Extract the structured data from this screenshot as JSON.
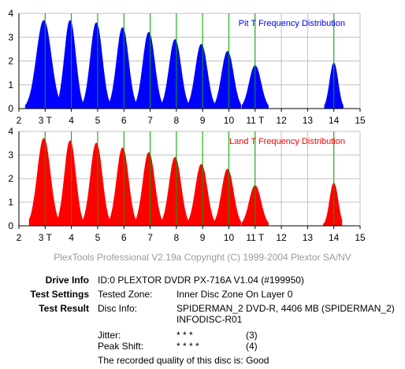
{
  "colors": {
    "pit": "#0000ff",
    "land": "#ff0000",
    "marker": "#00aa00",
    "grid": "#c0c0c0",
    "copyright": "#9a9a9a"
  },
  "chart_data": [
    {
      "type": "area",
      "title": "Pit T Frequency Distribution",
      "xlim": [
        2,
        15
      ],
      "ylim": [
        0,
        4
      ],
      "x_ticks": [
        "2",
        "3 T",
        "4",
        "5",
        "6",
        "7",
        "8",
        "9",
        "10",
        "11 T",
        "12",
        "13",
        "14",
        "15"
      ],
      "y_ticks": [
        "0",
        "1",
        "2",
        "3",
        "4"
      ],
      "grid": true,
      "markers_x": [
        3,
        4,
        5,
        6,
        7,
        8,
        9,
        10,
        11,
        14
      ],
      "peaks": [
        {
          "label": "3T",
          "center": 2.95,
          "height": 3.7,
          "from": 2.25,
          "to": 3.5
        },
        {
          "label": "4T",
          "center": 3.95,
          "height": 3.7,
          "from": 3.5,
          "to": 4.45
        },
        {
          "label": "5T",
          "center": 4.95,
          "height": 3.6,
          "from": 4.45,
          "to": 5.45
        },
        {
          "label": "6T",
          "center": 5.95,
          "height": 3.4,
          "from": 5.45,
          "to": 6.45
        },
        {
          "label": "7T",
          "center": 6.95,
          "height": 3.2,
          "from": 6.45,
          "to": 7.45
        },
        {
          "label": "8T",
          "center": 7.95,
          "height": 2.9,
          "from": 7.45,
          "to": 8.45
        },
        {
          "label": "9T",
          "center": 8.95,
          "height": 2.7,
          "from": 8.45,
          "to": 9.45
        },
        {
          "label": "10T",
          "center": 9.95,
          "height": 2.4,
          "from": 9.45,
          "to": 10.45
        },
        {
          "label": "11T",
          "center": 11.0,
          "height": 1.8,
          "from": 10.5,
          "to": 11.5
        },
        {
          "label": "14T",
          "center": 14.0,
          "height": 1.9,
          "from": 13.65,
          "to": 14.35
        }
      ]
    },
    {
      "type": "area",
      "title": "Land T Frequency Distribution",
      "xlim": [
        2,
        15
      ],
      "ylim": [
        0,
        4
      ],
      "x_ticks": [
        "2",
        "3 T",
        "4",
        "5",
        "6",
        "7",
        "8",
        "9",
        "10",
        "11 T",
        "12",
        "13",
        "14",
        "15"
      ],
      "y_ticks": [
        "0",
        "1",
        "2",
        "3",
        "4"
      ],
      "grid": true,
      "markers_x": [
        3,
        4,
        5,
        6,
        7,
        8,
        9,
        10,
        11,
        14
      ],
      "peaks": [
        {
          "label": "3T",
          "center": 2.95,
          "height": 3.7,
          "from": 2.4,
          "to": 3.5
        },
        {
          "label": "4T",
          "center": 3.95,
          "height": 3.6,
          "from": 3.5,
          "to": 4.45
        },
        {
          "label": "5T",
          "center": 4.95,
          "height": 3.5,
          "from": 4.45,
          "to": 5.45
        },
        {
          "label": "6T",
          "center": 5.95,
          "height": 3.3,
          "from": 5.45,
          "to": 6.45
        },
        {
          "label": "7T",
          "center": 6.95,
          "height": 3.1,
          "from": 6.45,
          "to": 7.45
        },
        {
          "label": "8T",
          "center": 7.95,
          "height": 2.9,
          "from": 7.45,
          "to": 8.45
        },
        {
          "label": "9T",
          "center": 8.95,
          "height": 2.6,
          "from": 8.45,
          "to": 9.45
        },
        {
          "label": "10T",
          "center": 9.95,
          "height": 2.4,
          "from": 9.45,
          "to": 10.45
        },
        {
          "label": "11T",
          "center": 11.0,
          "height": 1.7,
          "from": 10.5,
          "to": 11.5
        },
        {
          "label": "14T",
          "center": 14.0,
          "height": 1.8,
          "from": 13.6,
          "to": 14.3
        }
      ]
    }
  ],
  "copyright": "PlexTools Professional V2.19a Copyright (C) 1999-2004 Plextor SA/NV",
  "info": {
    "drive_label": "Drive Info",
    "drive_value": "ID:0 PLEXTOR DVDR PX-716A V1.04 (#199950)",
    "settings_label": "Test Settings",
    "tested_zone_label": "Tested Zone:",
    "tested_zone_value": "Inner Disc Zone On Layer 0",
    "result_label": "Test Result",
    "disc_info_label": "Disc Info:",
    "disc_info_line1": "SPIDERMAN_2 DVD-R, 4406 MB (SPIDERMAN_2)",
    "disc_info_line2": "INFODISC-R01",
    "jitter_label": "Jitter:",
    "jitter_stars": "* * *",
    "jitter_score": "(3)",
    "peak_shift_label": "Peak Shift:",
    "peak_shift_stars": "* * * *",
    "peak_shift_score": "(4)",
    "quality_text": "The recorded quality of this disc is: Good"
  }
}
